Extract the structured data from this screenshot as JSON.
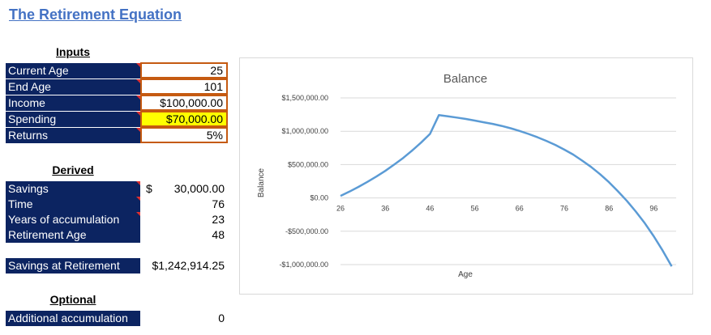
{
  "title": "The Retirement Equation",
  "inputs": {
    "heading": "Inputs",
    "rows": [
      {
        "label": "Current Age",
        "value": "25"
      },
      {
        "label": "End Age",
        "value": "101"
      },
      {
        "label": "Income",
        "value": "$100,000.00"
      },
      {
        "label": "Spending",
        "value": "$70,000.00"
      },
      {
        "label": "Returns",
        "value": "5%"
      }
    ]
  },
  "derived": {
    "heading": "Derived",
    "savings_label": "Savings",
    "savings_currency": "$",
    "savings_value": "30,000.00",
    "time_label": "Time",
    "time_value": "76",
    "years_label": "Years of accumulation",
    "years_value": "23",
    "retire_label": "Retirement Age",
    "retire_value": "48"
  },
  "savings_at_retirement": {
    "label": "Savings at Retirement",
    "value": "$1,242,914.25"
  },
  "optional": {
    "heading": "Optional",
    "label": "Additional accumulation",
    "value": "0"
  },
  "colors": {
    "label_bg": "#0c2461",
    "input_border": "#c55a11",
    "highlight": "#ffff00",
    "line": "#5b9bd5",
    "title": "#4472c4"
  },
  "chart_data": {
    "type": "line",
    "title": "Balance",
    "xlabel": "Age",
    "ylabel": "Balance",
    "xlim": [
      26,
      101
    ],
    "ylim": [
      -1000000,
      1500000
    ],
    "x_ticks": [
      26,
      36,
      46,
      56,
      66,
      76,
      86,
      96
    ],
    "x_tick_labels": [
      "26",
      "36",
      "46",
      "56",
      "66",
      "76",
      "86",
      "96"
    ],
    "y_ticks": [
      1500000,
      1000000,
      500000,
      0,
      -500000,
      -1000000
    ],
    "y_tick_labels": [
      "$1,500,000.00",
      "$1,000,000.00",
      "$500,000.00",
      "$0.00",
      "-$500,000.00",
      "-$1,000,000.00"
    ],
    "grid": true,
    "series": [
      {
        "x": [
          26,
          28,
          30,
          32,
          34,
          36,
          38,
          40,
          42,
          44,
          46,
          48,
          50,
          52,
          54,
          56,
          58,
          60,
          62,
          64,
          66,
          68,
          70,
          72,
          74,
          76,
          78,
          80,
          82,
          84,
          86,
          88,
          90,
          92,
          94,
          96,
          98,
          100
        ],
        "values": [
          30000,
          95000,
          165000,
          240000,
          320000,
          405000,
          500000,
          600000,
          710000,
          830000,
          960000,
          1242914,
          1225000,
          1205000,
          1185000,
          1160000,
          1135000,
          1110000,
          1080000,
          1045000,
          1005000,
          960000,
          910000,
          855000,
          795000,
          725000,
          650000,
          560000,
          465000,
          355000,
          235000,
          100000,
          -45000,
          -205000,
          -380000,
          -575000,
          -790000,
          -1025000
        ]
      }
    ]
  }
}
